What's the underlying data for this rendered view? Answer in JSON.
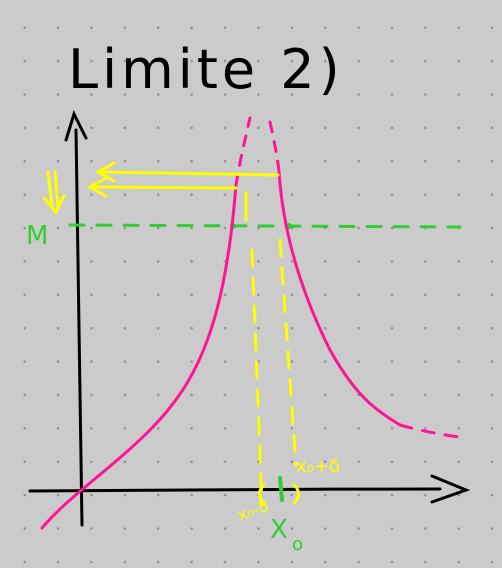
{
  "title": "Limite 2)",
  "labels": {
    "m": "M",
    "x0": "X",
    "x0_sub": "o",
    "x0_plus_delta": "x₀+δ",
    "x0_minus_delta": "x₀-δ",
    "arrow_down": "⇓"
  },
  "colors": {
    "background": "#cbcbcb",
    "grid_dot": "#8f8f8f",
    "ink": "#000000",
    "curve": "#ff1493",
    "guides": "#ffff00",
    "level": "#33cc33"
  }
}
